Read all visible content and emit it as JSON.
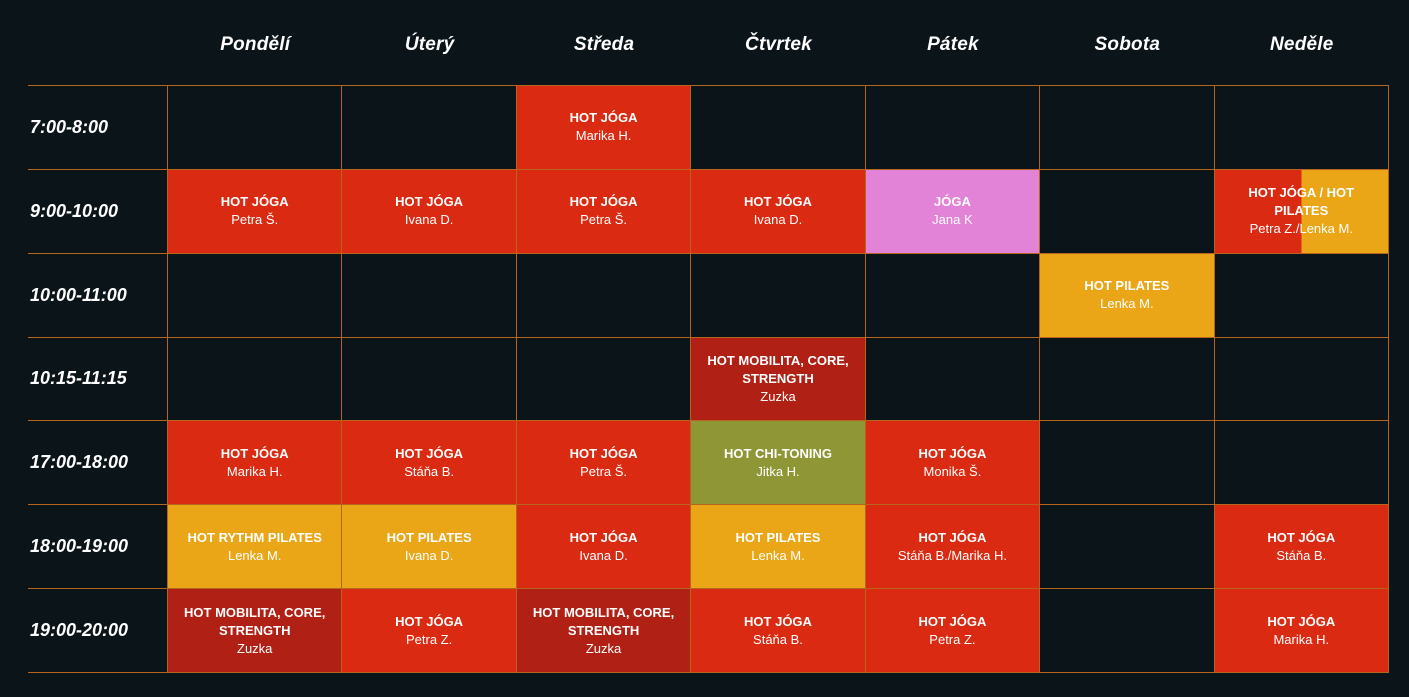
{
  "days": [
    "Pondělí",
    "Úterý",
    "Středa",
    "Čtvrtek",
    "Pátek",
    "Sobota",
    "Neděle"
  ],
  "colors": {
    "background": "#0b1418",
    "grid_line": "#b5651d",
    "hot_joga": "#db2a12",
    "hot_mobilita": "#b12014",
    "hot_pilates": "#eaa617",
    "joga": "#e283d8",
    "hot_chi_toning": "#8f9636"
  },
  "rows": [
    {
      "time": "7:00-8:00",
      "cells": [
        null,
        null,
        {
          "name": "HOT JÓGA",
          "instructor": "Marika H.",
          "color": "red"
        },
        null,
        null,
        null,
        null
      ]
    },
    {
      "time": "9:00-10:00",
      "cells": [
        {
          "name": "HOT JÓGA",
          "instructor": "Petra Š.",
          "color": "red"
        },
        {
          "name": "HOT JÓGA",
          "instructor": "Ivana D.",
          "color": "red"
        },
        {
          "name": "HOT JÓGA",
          "instructor": "Petra Š.",
          "color": "red"
        },
        {
          "name": "HOT JÓGA",
          "instructor": "Ivana D.",
          "color": "red"
        },
        {
          "name": "JÓGA",
          "instructor": "Jana K",
          "color": "pink"
        },
        null,
        {
          "name": "HOT JÓGA / HOT PILATES",
          "instructor": "Petra Z./Lenka M.",
          "color": "split"
        }
      ]
    },
    {
      "time": "10:00-11:00",
      "cells": [
        null,
        null,
        null,
        null,
        null,
        {
          "name": "HOT PILATES",
          "instructor": "Lenka M.",
          "color": "yellow"
        },
        null
      ]
    },
    {
      "time": "10:15-11:15",
      "cells": [
        null,
        null,
        null,
        {
          "name": "HOT MOBILITA, CORE, STRENGTH",
          "instructor": "Zuzka",
          "color": "darkred"
        },
        null,
        null,
        null
      ]
    },
    {
      "time": "17:00-18:00",
      "cells": [
        {
          "name": "HOT JÓGA",
          "instructor": "Marika H.",
          "color": "red"
        },
        {
          "name": "HOT JÓGA",
          "instructor": "Stáňa B.",
          "color": "red"
        },
        {
          "name": "HOT JÓGA",
          "instructor": "Petra Š.",
          "color": "red"
        },
        {
          "name": "HOT CHI-TONING",
          "instructor": "Jitka H.",
          "color": "olive"
        },
        {
          "name": "HOT JÓGA",
          "instructor": "Monika Š.",
          "color": "red"
        },
        null,
        null
      ]
    },
    {
      "time": "18:00-19:00",
      "cells": [
        {
          "name": "HOT RYTHM PILATES",
          "instructor": "Lenka M.",
          "color": "yellow"
        },
        {
          "name": "HOT PILATES",
          "instructor": "Ivana D.",
          "color": "yellow"
        },
        {
          "name": "HOT JÓGA",
          "instructor": "Ivana D.",
          "color": "red"
        },
        {
          "name": "HOT PILATES",
          "instructor": "Lenka M.",
          "color": "yellow"
        },
        {
          "name": "HOT JÓGA",
          "instructor": "Stáňa B./Marika H.",
          "color": "red"
        },
        null,
        {
          "name": "HOT JÓGA",
          "instructor": "Stáňa B.",
          "color": "red"
        }
      ]
    },
    {
      "time": "19:00-20:00",
      "cells": [
        {
          "name": "HOT MOBILITA, CORE, STRENGTH",
          "instructor": "Zuzka",
          "color": "darkred"
        },
        {
          "name": "HOT JÓGA",
          "instructor": "Petra Z.",
          "color": "red"
        },
        {
          "name": "HOT MOBILITA, CORE, STRENGTH",
          "instructor": "Zuzka",
          "color": "darkred"
        },
        {
          "name": "HOT JÓGA",
          "instructor": "Stáňa B.",
          "color": "red"
        },
        {
          "name": "HOT JÓGA",
          "instructor": "Petra Z.",
          "color": "red"
        },
        null,
        {
          "name": "HOT JÓGA",
          "instructor": "Marika H.",
          "color": "red"
        }
      ]
    }
  ]
}
